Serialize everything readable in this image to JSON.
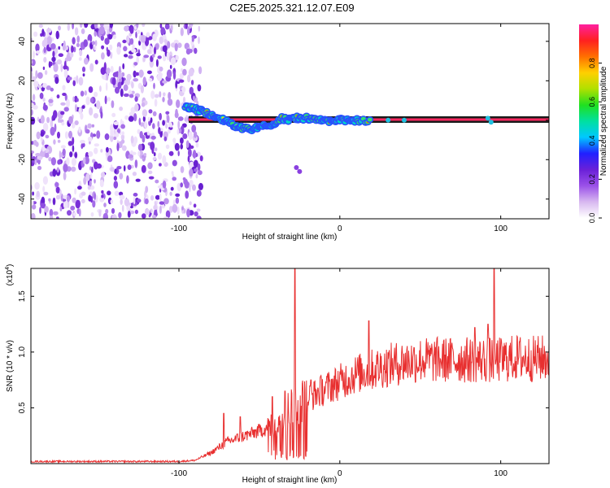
{
  "title": "C2E5.2025.321.12.07.E09",
  "chart_data": [
    {
      "type": "heatmap",
      "name": "spectrogram",
      "xlabel": "Height of straight line (km)",
      "ylabel": "Frequency (Hz)",
      "xlim": [
        -192,
        130
      ],
      "ylim": [
        -50,
        49
      ],
      "x_ticks": [
        -100,
        0,
        100
      ],
      "x_tick_labels": [
        "-100",
        "0",
        "100"
      ],
      "y_ticks": [
        40,
        20,
        0,
        -20,
        -40
      ],
      "y_tick_labels": [
        "40",
        "20",
        "0",
        "-20",
        "-40"
      ],
      "noise_region_x": [
        -192,
        -92
      ],
      "signal_track": [
        {
          "x": -96,
          "y": 7
        },
        {
          "x": -92,
          "y": 6
        },
        {
          "x": -88,
          "y": 5
        },
        {
          "x": -84,
          "y": 4
        },
        {
          "x": -80,
          "y": 3
        },
        {
          "x": -76,
          "y": 2
        },
        {
          "x": -72,
          "y": 0
        },
        {
          "x": -68,
          "y": -2
        },
        {
          "x": -64,
          "y": -3
        },
        {
          "x": -60,
          "y": -4
        },
        {
          "x": -56,
          "y": -5
        },
        {
          "x": -52,
          "y": -4
        },
        {
          "x": -48,
          "y": -3
        },
        {
          "x": -44,
          "y": -3
        },
        {
          "x": -40,
          "y": -1
        },
        {
          "x": -36,
          "y": 1
        },
        {
          "x": -32,
          "y": 0
        },
        {
          "x": -28,
          "y": 1
        },
        {
          "x": -24,
          "y": 1
        },
        {
          "x": -20,
          "y": 1
        },
        {
          "x": -16,
          "y": 0
        },
        {
          "x": -12,
          "y": 0
        },
        {
          "x": -8,
          "y": -1
        },
        {
          "x": -4,
          "y": 0
        },
        {
          "x": 0,
          "y": 0
        },
        {
          "x": 4,
          "y": 0
        },
        {
          "x": 8,
          "y": 0
        },
        {
          "x": 12,
          "y": 0
        },
        {
          "x": 20,
          "y": 0
        }
      ],
      "reference_line_y": 0,
      "reference_band": [
        -2,
        2
      ],
      "colorbar": {
        "label": "Normalized spectral amplitude",
        "range": [
          0,
          1
        ],
        "ticks": [
          0.0,
          0.2,
          0.4,
          0.6,
          0.8
        ],
        "tick_labels": [
          "0.0",
          "0.2",
          "0.4",
          "0.6",
          "0.8"
        ],
        "colors": [
          "#ffffff",
          "#d8b8f0",
          "#9a50e8",
          "#6a20d8",
          "#2020ff",
          "#00c8ff",
          "#00e0a0",
          "#20e020",
          "#b0e000",
          "#ffd000",
          "#ff7000",
          "#ff2020",
          "#ff20a0"
        ]
      }
    },
    {
      "type": "line",
      "name": "snr",
      "xlabel": "Height of straight line (km)",
      "ylabel": "SNR (10 * v/v)",
      "y_multiplier_label": "(x10",
      "y_multiplier_exp": "4",
      "y_multiplier_close": ")",
      "xlim": [
        -192,
        130
      ],
      "ylim": [
        0,
        1.75
      ],
      "x_ticks": [
        -100,
        0,
        100
      ],
      "x_tick_labels": [
        "-100",
        "0",
        "100"
      ],
      "y_ticks": [
        0.5,
        1.0,
        1.5
      ],
      "y_tick_labels": [
        "0.5",
        "1.0",
        "1.5"
      ],
      "color": "#e83030",
      "envelope": [
        {
          "x": -192,
          "y": 0.02
        },
        {
          "x": -100,
          "y": 0.02
        },
        {
          "x": -90,
          "y": 0.03
        },
        {
          "x": -80,
          "y": 0.1
        },
        {
          "x": -70,
          "y": 0.2
        },
        {
          "x": -60,
          "y": 0.25
        },
        {
          "x": -50,
          "y": 0.3
        },
        {
          "x": -40,
          "y": 0.35
        },
        {
          "x": -30,
          "y": 0.55
        },
        {
          "x": -20,
          "y": 0.6
        },
        {
          "x": -10,
          "y": 0.68
        },
        {
          "x": 0,
          "y": 0.75
        },
        {
          "x": 10,
          "y": 0.82
        },
        {
          "x": 20,
          "y": 0.86
        },
        {
          "x": 30,
          "y": 0.9
        },
        {
          "x": 40,
          "y": 0.93
        },
        {
          "x": 50,
          "y": 0.95
        },
        {
          "x": 60,
          "y": 0.95
        },
        {
          "x": 70,
          "y": 0.95
        },
        {
          "x": 80,
          "y": 0.95
        },
        {
          "x": 90,
          "y": 0.95
        },
        {
          "x": 100,
          "y": 0.95
        },
        {
          "x": 110,
          "y": 0.97
        },
        {
          "x": 120,
          "y": 0.96
        },
        {
          "x": 130,
          "y": 0.97
        }
      ],
      "spikes": [
        {
          "x": -72,
          "y": 0.45
        },
        {
          "x": -62,
          "y": 0.42
        },
        {
          "x": -42,
          "y": 0.6
        },
        {
          "x": -34,
          "y": 0.65
        },
        {
          "x": -28,
          "y": 1.75
        },
        {
          "x": -18,
          "y": 0.75
        },
        {
          "x": 18,
          "y": 1.28
        },
        {
          "x": 84,
          "y": 1.22
        },
        {
          "x": 92,
          "y": 1.25
        },
        {
          "x": 96,
          "y": 1.75
        }
      ]
    }
  ]
}
